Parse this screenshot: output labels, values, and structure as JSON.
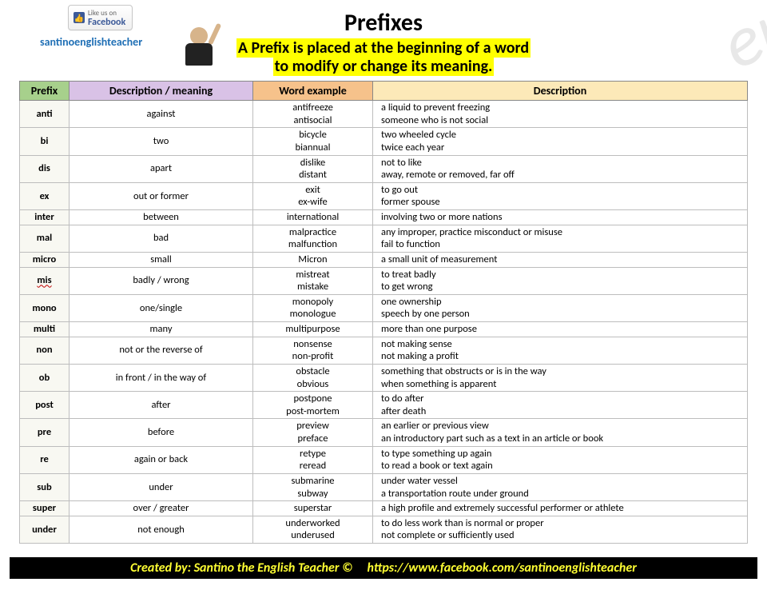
{
  "page": {
    "title": "Prefixes",
    "subtitle_line1": "A Prefix is placed at the beginning of a word",
    "subtitle_line2": "to modify or change its meaning.",
    "handle": "santinoenglishteacher",
    "fb_like_line1": "Like us on",
    "fb_like_line2": "Facebook",
    "watermark": "er"
  },
  "columns": {
    "c1": "Prefix",
    "c2": "Description / meaning",
    "c3": "Word example",
    "c4": "Description"
  },
  "header_colors": {
    "c1": "#a7d08c",
    "c2": "#d9c2e6",
    "c3": "#f6c28b",
    "c4": "#fce9b8"
  },
  "rows": [
    {
      "prefix": "anti",
      "meaning": "against",
      "examples": [
        "antifreeze",
        "antisocial"
      ],
      "descs": [
        "a liquid to prevent freezing",
        "someone who is not social"
      ]
    },
    {
      "prefix": "bi",
      "meaning": "two",
      "examples": [
        "bicycle",
        "biannual"
      ],
      "descs": [
        "two wheeled cycle",
        "twice each year"
      ]
    },
    {
      "prefix": "dis",
      "meaning": "apart",
      "examples": [
        "dislike",
        "distant"
      ],
      "descs": [
        "not to like",
        "away, remote or removed, far off"
      ]
    },
    {
      "prefix": "ex",
      "meaning": "out or former",
      "examples": [
        "exit",
        "ex-wife"
      ],
      "descs": [
        "to go out",
        "former spouse"
      ]
    },
    {
      "prefix": "inter",
      "meaning": "between",
      "examples": [
        "international"
      ],
      "descs": [
        "involving two or more nations"
      ]
    },
    {
      "prefix": "mal",
      "meaning": "bad",
      "examples": [
        "malpractice",
        "malfunction"
      ],
      "descs": [
        "any improper, practice misconduct or misuse",
        "fail to function"
      ]
    },
    {
      "prefix": "micro",
      "meaning": "small",
      "examples": [
        "Micron"
      ],
      "descs": [
        "a small unit of measurement"
      ]
    },
    {
      "prefix": "mis",
      "meaning": "badly / wrong",
      "examples": [
        "mistreat",
        "mistake"
      ],
      "descs": [
        "to treat badly",
        "to get wrong"
      ],
      "misspell": true
    },
    {
      "prefix": "mono",
      "meaning": "one/single",
      "examples": [
        "monopoly",
        "monologue"
      ],
      "descs": [
        "one ownership",
        "speech by one person"
      ]
    },
    {
      "prefix": "multi",
      "meaning": "many",
      "examples": [
        "multipurpose"
      ],
      "descs": [
        "more than one purpose"
      ]
    },
    {
      "prefix": "non",
      "meaning": "not or  the reverse of",
      "examples": [
        "nonsense",
        "non-profit"
      ],
      "descs": [
        "not making sense",
        "not making a profit"
      ]
    },
    {
      "prefix": "ob",
      "meaning": "in front / in the way of",
      "examples": [
        "obstacle",
        "obvious"
      ],
      "descs": [
        "something that obstructs or is in the way",
        "when something is apparent"
      ]
    },
    {
      "prefix": "post",
      "meaning": "after",
      "examples": [
        "postpone",
        "post-mortem"
      ],
      "descs": [
        "to do after",
        "after death"
      ]
    },
    {
      "prefix": "pre",
      "meaning": "before",
      "examples": [
        "preview",
        "preface"
      ],
      "descs": [
        "an earlier or previous view",
        "an introductory part such as a text  in an article or book"
      ]
    },
    {
      "prefix": "re",
      "meaning": "again or back",
      "examples": [
        "retype",
        "reread"
      ],
      "descs": [
        "to type something up again",
        "to read a book or text again"
      ]
    },
    {
      "prefix": "sub",
      "meaning": "under",
      "examples": [
        "submarine",
        "subway"
      ],
      "descs": [
        "under water vessel",
        "a transportation route under ground"
      ]
    },
    {
      "prefix": "super",
      "meaning": "over / greater",
      "examples": [
        "superstar"
      ],
      "descs": [
        "a high profile and extremely successful performer or athlete"
      ]
    },
    {
      "prefix": "under",
      "meaning": "not enough",
      "examples": [
        "underworked",
        "underused"
      ],
      "descs": [
        "to do less work than is normal or proper",
        "not complete or sufficiently used"
      ]
    }
  ],
  "footer": {
    "left": "Created by: Santino the English Teacher ©",
    "right": "https://www.facebook.com/santinoenglishteacher"
  }
}
